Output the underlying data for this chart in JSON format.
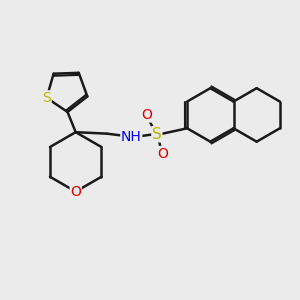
{
  "background_color": "#ebebeb",
  "bond_color": "#1a1a1a",
  "bond_width": 1.8,
  "atom_colors": {
    "S_thio": "#b8b800",
    "S_sulfo": "#b8b800",
    "N": "#0000e0",
    "O": "#dd0000",
    "O_ring": "#dd0000"
  },
  "font_size": 10,
  "fig_width": 3.0,
  "fig_height": 3.0,
  "xlim": [
    0,
    10
  ],
  "ylim": [
    0,
    10
  ]
}
